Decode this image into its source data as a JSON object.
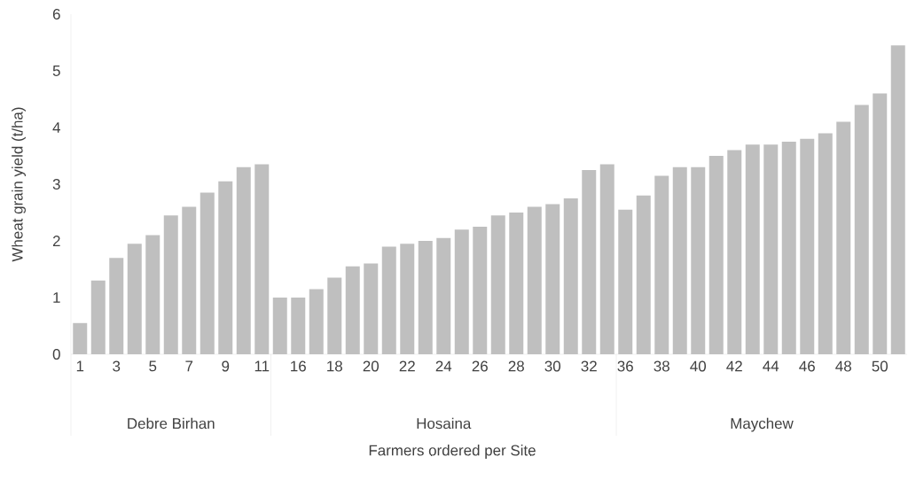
{
  "chart_data": {
    "type": "bar",
    "xlabel": "Farmers ordered per Site",
    "ylabel": "Wheat grain yield (t/ha)",
    "categories": [
      "1",
      null,
      "3",
      null,
      "5",
      null,
      "7",
      null,
      "9",
      null,
      "11",
      null,
      "16",
      null,
      "18",
      null,
      "20",
      null,
      "22",
      null,
      "24",
      null,
      "26",
      null,
      "28",
      null,
      "30",
      null,
      "32",
      null,
      "36",
      null,
      "38",
      null,
      "40",
      null,
      "42",
      null,
      "44",
      null,
      "46",
      null,
      "48",
      null,
      "50",
      null
    ],
    "values": [
      0.55,
      1.3,
      1.7,
      1.95,
      2.1,
      2.45,
      2.6,
      2.85,
      3.05,
      3.3,
      3.35,
      1.0,
      1.0,
      1.15,
      1.35,
      1.55,
      1.6,
      1.9,
      1.95,
      2.0,
      2.05,
      2.2,
      2.25,
      2.45,
      2.5,
      2.6,
      2.65,
      2.75,
      3.25,
      3.35,
      2.55,
      2.8,
      3.15,
      3.3,
      3.3,
      3.5,
      3.6,
      3.7,
      3.7,
      3.75,
      3.8,
      3.9,
      4.1,
      4.4,
      4.6,
      5.45
    ],
    "color": "#bfbfbf",
    "ylim": [
      0,
      6
    ],
    "yticks": [
      0,
      1,
      2,
      3,
      4,
      5,
      6
    ],
    "annotations": [
      "Debre Birhan",
      "Hosaina",
      "Maychew"
    ]
  }
}
